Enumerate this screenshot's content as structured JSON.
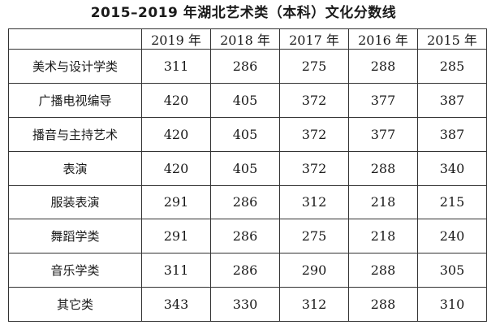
{
  "title": "2015–2019 年湖北艺术类（本科）文化分数线",
  "table": {
    "corner": "",
    "years": [
      "2019 年",
      "2018 年",
      "2017 年",
      "2016 年",
      "2015 年"
    ],
    "rows": [
      {
        "category": "美术与设计学类",
        "scores": [
          "311",
          "286",
          "275",
          "288",
          "285"
        ]
      },
      {
        "category": "广播电视编导",
        "scores": [
          "420",
          "405",
          "372",
          "377",
          "387"
        ]
      },
      {
        "category": "播音与主持艺术",
        "scores": [
          "420",
          "405",
          "372",
          "377",
          "387"
        ]
      },
      {
        "category": "表演",
        "scores": [
          "420",
          "405",
          "372",
          "288",
          "340"
        ]
      },
      {
        "category": "服装表演",
        "scores": [
          "291",
          "286",
          "312",
          "218",
          "215"
        ]
      },
      {
        "category": "舞蹈学类",
        "scores": [
          "291",
          "286",
          "275",
          "218",
          "240"
        ]
      },
      {
        "category": "音乐学类",
        "scores": [
          "311",
          "286",
          "290",
          "288",
          "305"
        ]
      },
      {
        "category": "其它类",
        "scores": [
          "343",
          "330",
          "312",
          "288",
          "310"
        ]
      }
    ]
  }
}
